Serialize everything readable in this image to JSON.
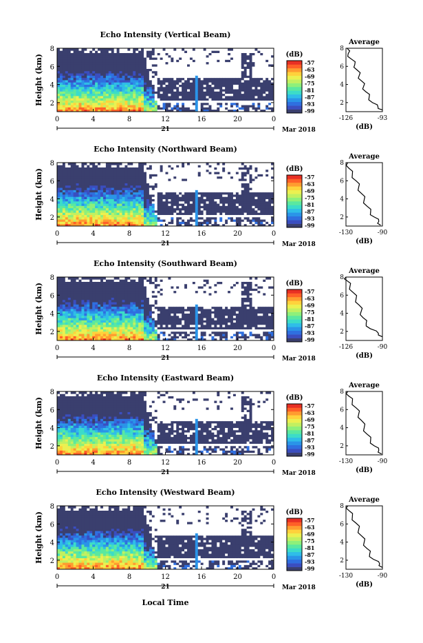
{
  "colors": {
    "background_echo": "#3a3f6e",
    "missing": "#ffffff",
    "colorbar": [
      "#3a3f6e",
      "#3a4ec0",
      "#2f6fe0",
      "#2a94e8",
      "#2fbde8",
      "#3cdcc8",
      "#5ae8a0",
      "#8ef07a",
      "#c2f060",
      "#ecf050",
      "#ffd23c",
      "#ff9c30",
      "#ff6028",
      "#e83024"
    ]
  },
  "common": {
    "ylabel": "Height (km)",
    "y_ticks": [
      "2",
      "4",
      "6",
      "8"
    ],
    "x_ticks": [
      "0",
      "4",
      "8",
      "12",
      "16",
      "20",
      "0"
    ],
    "date_day": "21",
    "date_month": "Mar 2018",
    "colorbar_unit": "(dB)",
    "colorbar_ticks": [
      "-57",
      "-63",
      "-69",
      "-75",
      "-81",
      "-87",
      "-93",
      "-99"
    ],
    "avg_title": "Average",
    "avg_xlabel": "(dB)",
    "avg_y_ticks": [
      "2",
      "4",
      "6",
      "8"
    ],
    "xlabel": "Local Time"
  },
  "chart_data": [
    {
      "type": "heatmap",
      "title": "Echo Intensity (Vertical Beam)",
      "xlabel": "",
      "ylabel": "Height (km)",
      "xlim": [
        0,
        24
      ],
      "ylim": [
        1,
        8
      ],
      "x_tick_values": [
        0,
        4,
        8,
        12,
        16,
        20,
        24
      ],
      "colorbar_range": [
        -99,
        -57
      ],
      "avg_profile": {
        "xlim": [
          -126,
          -93
        ],
        "x_tick_labels": [
          "-126",
          "-93"
        ],
        "points": [
          [
            -93,
            1.2
          ],
          [
            -97,
            1.5
          ],
          [
            -102,
            2.0
          ],
          [
            -105,
            2.6
          ],
          [
            -108,
            3.2
          ],
          [
            -110,
            3.8
          ],
          [
            -112,
            4.4
          ],
          [
            -114,
            5.0
          ],
          [
            -116,
            5.6
          ],
          [
            -118,
            6.2
          ],
          [
            -121,
            6.8
          ],
          [
            -124,
            7.4
          ],
          [
            -125,
            8.0
          ]
        ]
      }
    },
    {
      "type": "heatmap",
      "title": "Echo Intensity (Northward Beam)",
      "xlabel": "",
      "ylabel": "Height (km)",
      "xlim": [
        0,
        24
      ],
      "ylim": [
        1,
        8
      ],
      "x_tick_values": [
        0,
        4,
        8,
        12,
        16,
        20,
        24
      ],
      "colorbar_range": [
        -99,
        -57
      ],
      "avg_profile": {
        "xlim": [
          -130,
          -90
        ],
        "x_tick_labels": [
          "-130",
          "-90"
        ],
        "points": [
          [
            -92,
            1.1
          ],
          [
            -94,
            1.5
          ],
          [
            -99,
            2.0
          ],
          [
            -103,
            2.5
          ],
          [
            -107,
            3.2
          ],
          [
            -110,
            3.9
          ],
          [
            -113,
            4.6
          ],
          [
            -116,
            5.3
          ],
          [
            -119,
            6.0
          ],
          [
            -123,
            6.7
          ],
          [
            -127,
            7.4
          ],
          [
            -128,
            8.0
          ]
        ]
      }
    },
    {
      "type": "heatmap",
      "title": "Echo Intensity (Southward Beam)",
      "xlabel": "",
      "ylabel": "Height (km)",
      "xlim": [
        0,
        24
      ],
      "ylim": [
        1,
        8
      ],
      "x_tick_values": [
        0,
        4,
        8,
        12,
        16,
        20,
        24
      ],
      "colorbar_range": [
        -99,
        -57
      ],
      "avg_profile": {
        "xlim": [
          -126,
          -90
        ],
        "x_tick_labels": [
          "-126",
          "-90"
        ],
        "points": [
          [
            -90,
            1.4
          ],
          [
            -94,
            1.8
          ],
          [
            -102,
            2.3
          ],
          [
            -106,
            2.9
          ],
          [
            -109,
            3.5
          ],
          [
            -111,
            4.2
          ],
          [
            -113,
            4.9
          ],
          [
            -116,
            5.6
          ],
          [
            -119,
            6.3
          ],
          [
            -122,
            7.0
          ],
          [
            -125,
            7.6
          ],
          [
            -126,
            8.0
          ]
        ]
      }
    },
    {
      "type": "heatmap",
      "title": "Echo Intensity (Eastward Beam)",
      "xlabel": "",
      "ylabel": "Height (km)",
      "xlim": [
        0,
        24
      ],
      "ylim": [
        1,
        8
      ],
      "x_tick_values": [
        0,
        4,
        8,
        12,
        16,
        20,
        24
      ],
      "colorbar_range": [
        -99,
        -57
      ],
      "avg_profile": {
        "xlim": [
          -130,
          -90
        ],
        "x_tick_labels": [
          "-130",
          "-90"
        ],
        "points": [
          [
            -91,
            1.1
          ],
          [
            -94,
            1.5
          ],
          [
            -99,
            2.0
          ],
          [
            -103,
            2.6
          ],
          [
            -107,
            3.3
          ],
          [
            -110,
            4.0
          ],
          [
            -113,
            4.8
          ],
          [
            -116,
            5.5
          ],
          [
            -119,
            6.2
          ],
          [
            -123,
            6.9
          ],
          [
            -127,
            7.5
          ],
          [
            -128,
            8.0
          ]
        ]
      }
    },
    {
      "type": "heatmap",
      "title": "Echo Intensity (Westward Beam)",
      "xlabel": "Local Time",
      "ylabel": "Height (km)",
      "xlim": [
        0,
        24
      ],
      "ylim": [
        1,
        8
      ],
      "x_tick_values": [
        0,
        4,
        8,
        12,
        16,
        20,
        24
      ],
      "colorbar_range": [
        -99,
        -57
      ],
      "avg_profile": {
        "xlim": [
          -130,
          -90
        ],
        "x_tick_labels": [
          "-130",
          "-90"
        ],
        "points": [
          [
            -90,
            1.2
          ],
          [
            -93,
            1.6
          ],
          [
            -100,
            2.1
          ],
          [
            -104,
            2.7
          ],
          [
            -107,
            3.3
          ],
          [
            -110,
            4.0
          ],
          [
            -113,
            4.7
          ],
          [
            -116,
            5.4
          ],
          [
            -119,
            6.1
          ],
          [
            -123,
            6.8
          ],
          [
            -127,
            7.5
          ],
          [
            -128,
            8.0
          ]
        ]
      }
    }
  ]
}
